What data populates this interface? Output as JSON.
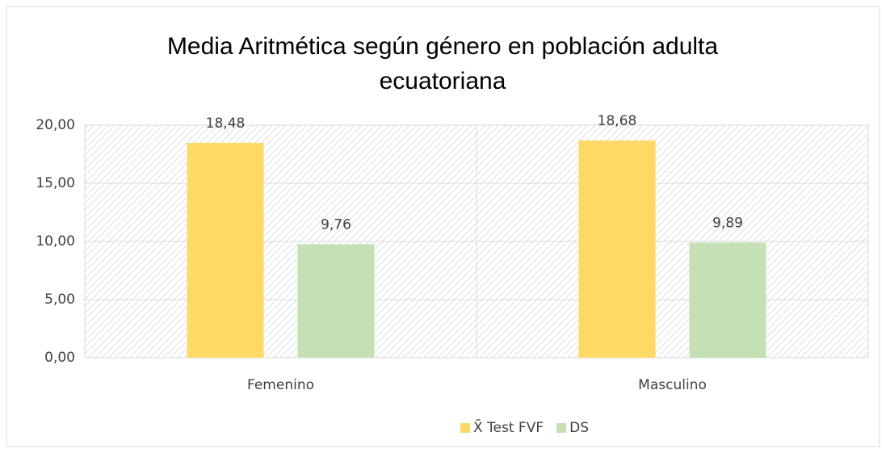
{
  "chart_data": {
    "type": "bar",
    "title": "Media Aritmética según género en población adulta ecuatoriana",
    "categories": [
      "Femenino",
      "Masculino"
    ],
    "series": [
      {
        "name": "X̄ Test FVF",
        "color": "#FFD966",
        "values": [
          18.48,
          18.68
        ],
        "value_labels": [
          "18,48",
          "18,68"
        ]
      },
      {
        "name": "DS",
        "color": "#C5E0B4",
        "values": [
          9.76,
          9.89
        ],
        "value_labels": [
          "9,76",
          "9,89"
        ]
      }
    ],
    "ylim": [
      0,
      20
    ],
    "yticks": [
      {
        "value": 0,
        "label": "0,00"
      },
      {
        "value": 5,
        "label": "5,00"
      },
      {
        "value": 10,
        "label": "10,00"
      },
      {
        "value": 15,
        "label": "15,00"
      },
      {
        "value": 20,
        "label": "20,00"
      }
    ],
    "grid": true,
    "legend": "bottom"
  }
}
